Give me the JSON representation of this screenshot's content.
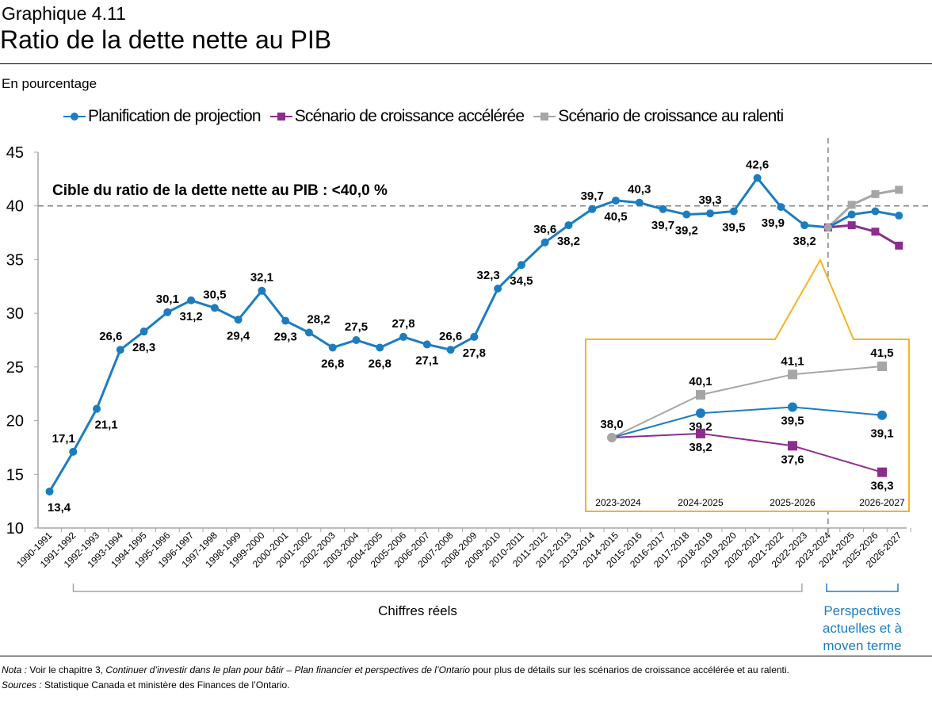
{
  "header": {
    "kicker": "Graphique 4.11",
    "title": "Ratio de la dette nette au PIB",
    "unit": "En pourcentage"
  },
  "chart_data": {
    "type": "line",
    "title": "Ratio de la dette nette au PIB",
    "ylabel": "En pourcentage",
    "ylim": [
      10,
      45
    ],
    "yticks": [
      10,
      15,
      20,
      25,
      30,
      35,
      40,
      45
    ],
    "grid": false,
    "legend": "top",
    "categories": [
      "1990-1991",
      "1991-1992",
      "1992-1993",
      "1993-1994",
      "1994-1995",
      "1995-1996",
      "1996-1997",
      "1997-1998",
      "1998-1999",
      "1999-2000",
      "2000-2001",
      "2001-2002",
      "2002-2003",
      "2003-2004",
      "2004-2005",
      "2005-2006",
      "2006-2007",
      "2007-2008",
      "2008-2009",
      "2009-2010",
      "2010-2011",
      "2011-2012",
      "2012-2013",
      "2013-2014",
      "2014-2015",
      "2015-2016",
      "2016-2017",
      "2017-2018",
      "2018-2019",
      "2019-2020",
      "2020-2021",
      "2021-2022",
      "2022-2023",
      "2023-2024",
      "2024-2025",
      "2025-2026",
      "2026-2027"
    ],
    "series": [
      {
        "name": "Planification de projection",
        "color": "#1b7dc0",
        "marker": "circle",
        "values": [
          13.4,
          17.1,
          21.1,
          26.6,
          28.3,
          30.1,
          31.2,
          30.5,
          29.4,
          32.1,
          29.3,
          28.2,
          26.8,
          27.5,
          26.8,
          27.8,
          27.1,
          26.6,
          27.8,
          32.3,
          34.5,
          36.6,
          38.2,
          39.7,
          40.5,
          40.3,
          39.7,
          39.2,
          39.3,
          39.5,
          42.6,
          39.9,
          38.2,
          38.0,
          39.2,
          39.5,
          39.1
        ]
      },
      {
        "name": "Scénario de croissance accélérée",
        "color": "#8c2d8e",
        "marker": "square",
        "values": [
          null,
          null,
          null,
          null,
          null,
          null,
          null,
          null,
          null,
          null,
          null,
          null,
          null,
          null,
          null,
          null,
          null,
          null,
          null,
          null,
          null,
          null,
          null,
          null,
          null,
          null,
          null,
          null,
          null,
          null,
          null,
          null,
          null,
          38.0,
          38.2,
          37.6,
          36.3
        ]
      },
      {
        "name": "Scénario de croissance au ralenti",
        "color": "#a6a6a6",
        "marker": "square",
        "values": [
          null,
          null,
          null,
          null,
          null,
          null,
          null,
          null,
          null,
          null,
          null,
          null,
          null,
          null,
          null,
          null,
          null,
          null,
          null,
          null,
          null,
          null,
          null,
          null,
          null,
          null,
          null,
          null,
          null,
          null,
          null,
          null,
          null,
          38.0,
          40.1,
          41.1,
          41.5
        ]
      }
    ],
    "target_line": {
      "value": 40,
      "label": "Cible du ratio de la dette nette au PIB : <40,0 %"
    },
    "divider_after": "2023-2024",
    "groups": [
      {
        "label": "Chiffres réels",
        "color": "#000000"
      },
      {
        "label": "Perspectives actuelles et à moyen terme",
        "lines": [
          "Perspectives",
          "actuelles et à",
          "moyen terme"
        ],
        "color": "#1b7dc0"
      }
    ],
    "inset": {
      "categories": [
        "2023-2024",
        "2024-2025",
        "2025-2026",
        "2026-2027"
      ],
      "border_color": "#f5b324",
      "start_label": "38,0"
    }
  },
  "footer": {
    "note_label": "Nota :",
    "note_pre": " Voir le chapitre 3, ",
    "note_italic": "Continuer d’investir dans le plan pour bâtir – Plan financier et perspectives de l’Ontario",
    "note_post": " pour plus de détails sur les scénarios de croissance accélérée et au ralenti.",
    "sources_label": "Sources :",
    "sources_text": " Statistique Canada et ministère des Finances de l’Ontario."
  }
}
